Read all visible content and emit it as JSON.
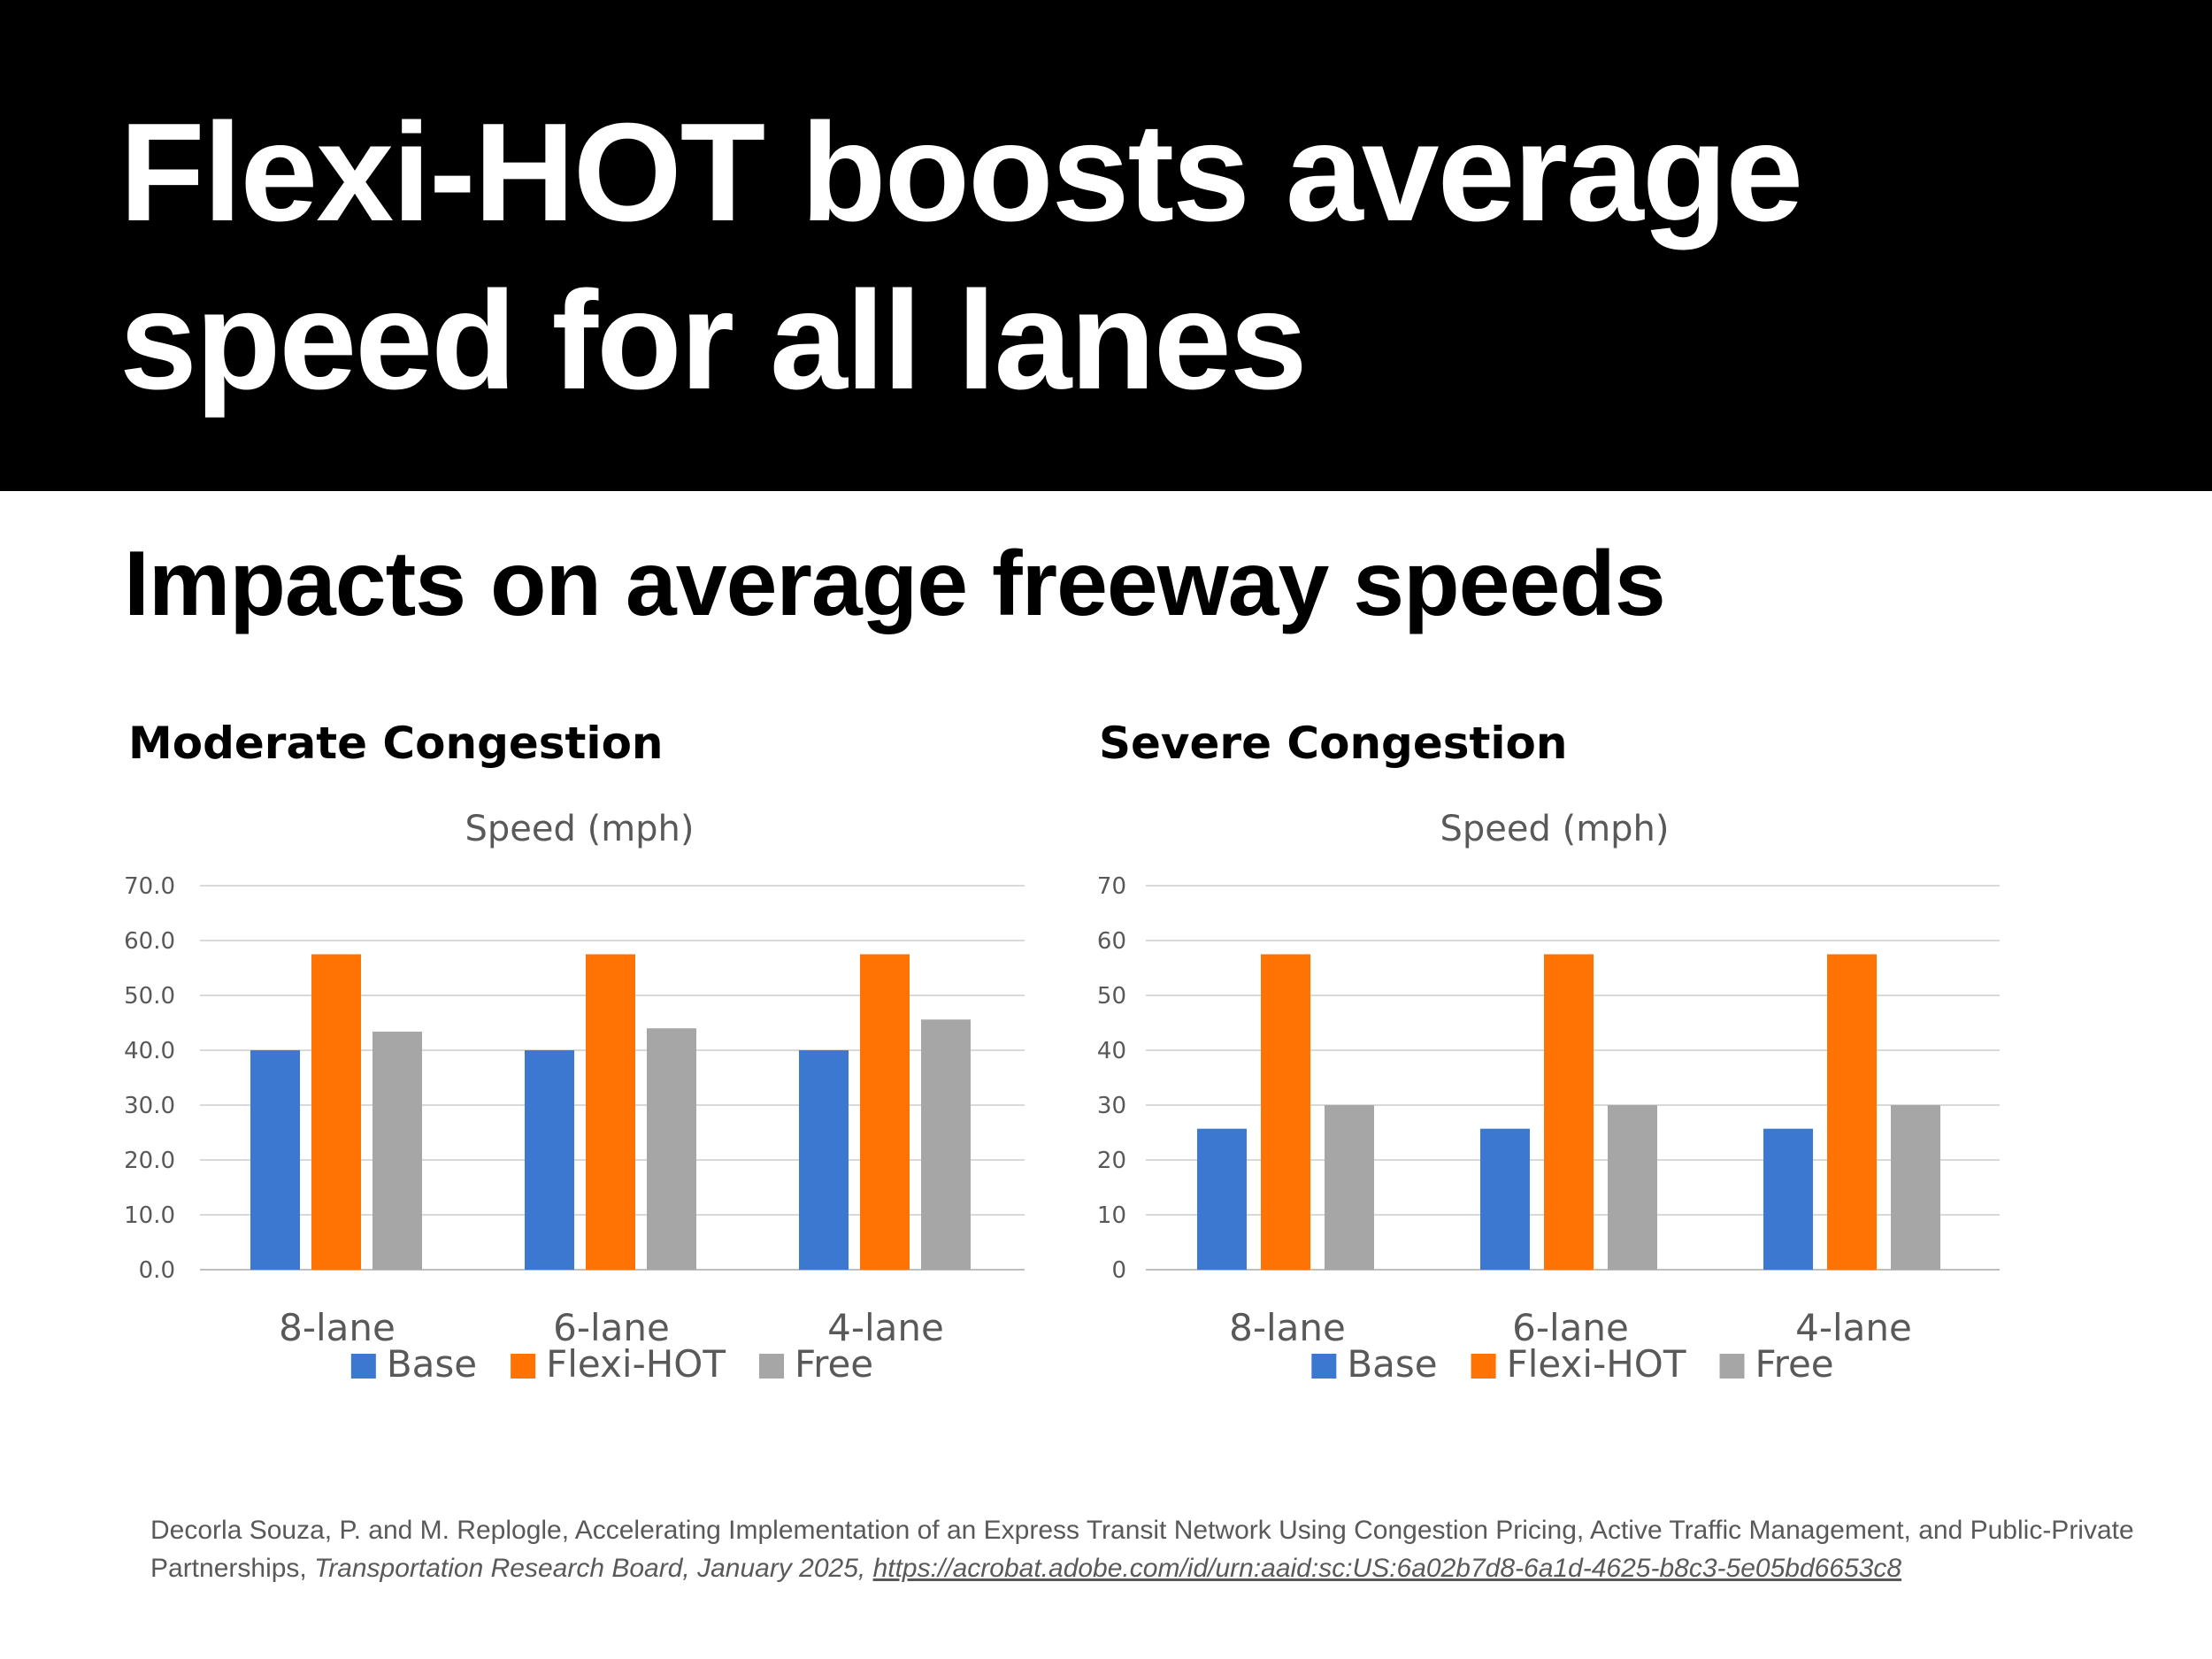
{
  "slide": {
    "title": "Flexi-HOT boosts average speed for all lanes",
    "subtitle": "Impacts on average freeway speeds"
  },
  "colors": {
    "header_bg": "#000000",
    "base": "#3C77D0",
    "flexi_hot": "#FF7304",
    "free": "#A6A6A6"
  },
  "chart_data": [
    {
      "type": "bar",
      "panel_title": "Moderate Congestion",
      "title": "Speed (mph)",
      "xlabel": "",
      "ylabel": "",
      "categories": [
        "8-lane",
        "6-lane",
        "4-lane"
      ],
      "series": [
        {
          "name": "Base",
          "color": "#3C77D0",
          "values": [
            40.0,
            40.0,
            40.0
          ]
        },
        {
          "name": "Flexi-HOT",
          "color": "#FF7304",
          "values": [
            57.5,
            57.5,
            57.5
          ]
        },
        {
          "name": "Free",
          "color": "#A6A6A6",
          "values": [
            43.4,
            44.0,
            45.6
          ]
        }
      ],
      "ylim": [
        0,
        70
      ],
      "yticks": [
        "0.0",
        "10.0",
        "20.0",
        "30.0",
        "40.0",
        "50.0",
        "60.0",
        "70.0"
      ],
      "grid": true,
      "legend": "bottom"
    },
    {
      "type": "bar",
      "panel_title": "Severe Congestion",
      "title": "Speed (mph)",
      "xlabel": "",
      "ylabel": "",
      "categories": [
        "8-lane",
        "6-lane",
        "4-lane"
      ],
      "series": [
        {
          "name": "Base",
          "color": "#3C77D0",
          "values": [
            25.7,
            25.7,
            25.7
          ]
        },
        {
          "name": "Flexi-HOT",
          "color": "#FF7304",
          "values": [
            57.5,
            57.5,
            57.5
          ]
        },
        {
          "name": "Free",
          "color": "#A6A6A6",
          "values": [
            30.0,
            30.0,
            30.0
          ]
        }
      ],
      "ylim": [
        0,
        70
      ],
      "yticks": [
        "0",
        "10",
        "20",
        "30",
        "40",
        "50",
        "60",
        "70"
      ],
      "grid": true,
      "legend": "bottom"
    }
  ],
  "citation": {
    "authors_text": "Decorla Souza, P. and M. Replogle, Accelerating Implementation of an Express Transit Network Using Congestion Pricing, Active Traffic Management, and Public-Private Partnerships, ",
    "venue": "Transportation Research Board, January 2025, ",
    "url": "https://acrobat.adobe.com/id/urn:aaid:sc:US:6a02b7d8-6a1d-4625-b8c3-5e05bd6653c8"
  }
}
